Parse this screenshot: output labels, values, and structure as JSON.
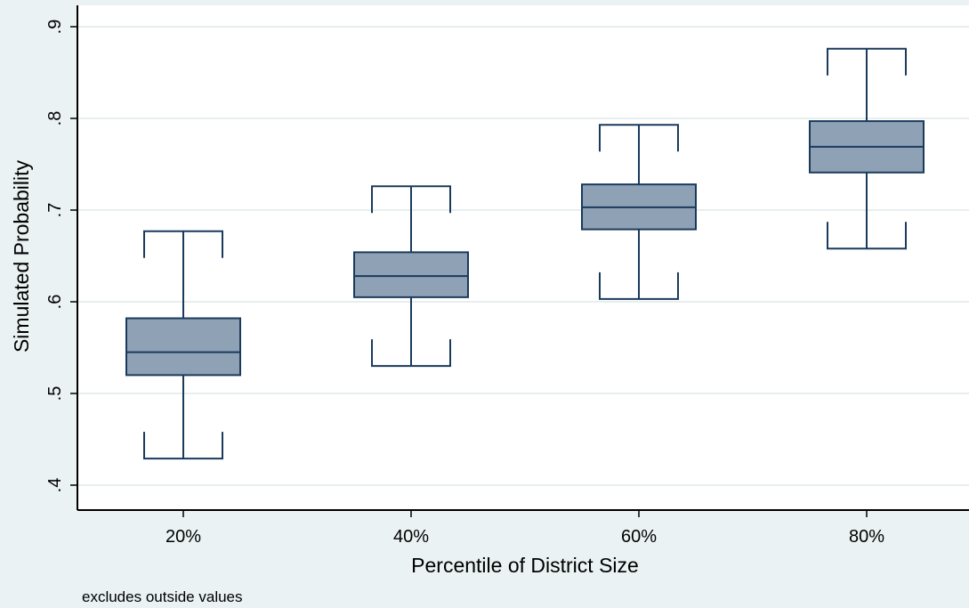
{
  "chart_data": {
    "type": "box",
    "title": "",
    "xlabel": "Percentile of District Size",
    "ylabel": "Simulated Probability",
    "ylim": [
      0.4,
      0.9
    ],
    "yticks": [
      0.4,
      0.5,
      0.6,
      0.7,
      0.8,
      0.9
    ],
    "ytick_labels": [
      ".4",
      ".5",
      ".6",
      ".7",
      ".8",
      ".9"
    ],
    "categories": [
      "20%",
      "40%",
      "60%",
      "80%"
    ],
    "boxes": [
      {
        "min": 0.429,
        "q1": 0.52,
        "median": 0.545,
        "q3": 0.582,
        "max": 0.677
      },
      {
        "min": 0.53,
        "q1": 0.605,
        "median": 0.628,
        "q3": 0.654,
        "max": 0.726
      },
      {
        "min": 0.603,
        "q1": 0.679,
        "median": 0.703,
        "q3": 0.728,
        "max": 0.793
      },
      {
        "min": 0.658,
        "q1": 0.741,
        "median": 0.769,
        "q3": 0.797,
        "max": 0.876
      }
    ],
    "grid": true,
    "note": "excludes outside values",
    "colors": {
      "box_fill": "#8fa2b5",
      "box_stroke": "#1a3a5c",
      "background": "#eaf2f3",
      "plot_background": "#ffffff",
      "grid": "#e8eef0"
    }
  }
}
